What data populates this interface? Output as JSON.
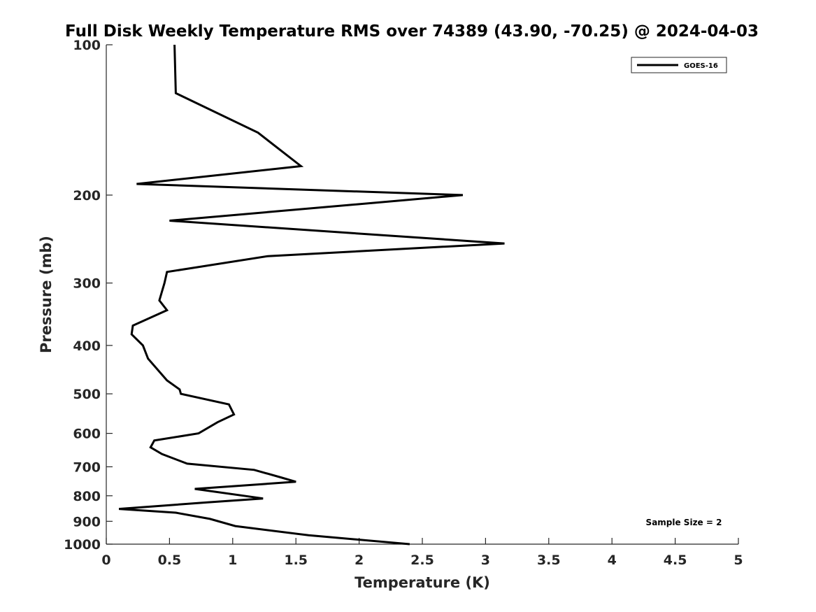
{
  "chart_data": {
    "type": "line",
    "title": "Full Disk Weekly Temperature RMS over 74389 (43.90, -70.25) @ 2024-04-03",
    "xlabel": "Temperature (K)",
    "ylabel": "Pressure (mb)",
    "xlim": [
      0,
      5
    ],
    "ylim": [
      100,
      1000
    ],
    "y_scale": "log",
    "y_reversed": true,
    "x_ticks": [
      "0",
      "0.5",
      "1",
      "1.5",
      "2",
      "2.5",
      "3",
      "3.5",
      "4",
      "4.5",
      "5"
    ],
    "x_tick_values": [
      0,
      0.5,
      1,
      1.5,
      2,
      2.5,
      3,
      3.5,
      4,
      4.5,
      5
    ],
    "y_ticks": [
      "100",
      "200",
      "300",
      "400",
      "500",
      "600",
      "700",
      "800",
      "900",
      "1000"
    ],
    "y_tick_values": [
      100,
      200,
      300,
      400,
      500,
      600,
      700,
      800,
      900,
      1000
    ],
    "grid": false,
    "legend_position": "top-right",
    "annotation": "Sample Size = 2",
    "series": [
      {
        "name": "GOES-16",
        "color": "#000000",
        "points": [
          {
            "x": 0.54,
            "y": 100
          },
          {
            "x": 0.55,
            "y": 125
          },
          {
            "x": 1.2,
            "y": 150
          },
          {
            "x": 1.54,
            "y": 175
          },
          {
            "x": 0.24,
            "y": 190
          },
          {
            "x": 2.82,
            "y": 200
          },
          {
            "x": 0.5,
            "y": 225
          },
          {
            "x": 3.15,
            "y": 250
          },
          {
            "x": 1.28,
            "y": 265
          },
          {
            "x": 0.48,
            "y": 285
          },
          {
            "x": 0.46,
            "y": 300
          },
          {
            "x": 0.42,
            "y": 325
          },
          {
            "x": 0.48,
            "y": 340
          },
          {
            "x": 0.21,
            "y": 365
          },
          {
            "x": 0.2,
            "y": 380
          },
          {
            "x": 0.29,
            "y": 400
          },
          {
            "x": 0.33,
            "y": 425
          },
          {
            "x": 0.48,
            "y": 470
          },
          {
            "x": 0.58,
            "y": 490
          },
          {
            "x": 0.59,
            "y": 500
          },
          {
            "x": 0.97,
            "y": 525
          },
          {
            "x": 1.01,
            "y": 550
          },
          {
            "x": 0.88,
            "y": 570
          },
          {
            "x": 0.73,
            "y": 600
          },
          {
            "x": 0.38,
            "y": 620
          },
          {
            "x": 0.35,
            "y": 640
          },
          {
            "x": 0.44,
            "y": 660
          },
          {
            "x": 0.64,
            "y": 690
          },
          {
            "x": 1.17,
            "y": 710
          },
          {
            "x": 1.38,
            "y": 735
          },
          {
            "x": 1.5,
            "y": 750
          },
          {
            "x": 0.7,
            "y": 775
          },
          {
            "x": 1.24,
            "y": 810
          },
          {
            "x": 0.8,
            "y": 825
          },
          {
            "x": 0.1,
            "y": 850
          },
          {
            "x": 0.55,
            "y": 865
          },
          {
            "x": 0.82,
            "y": 890
          },
          {
            "x": 1.02,
            "y": 920
          },
          {
            "x": 1.6,
            "y": 960
          },
          {
            "x": 2.4,
            "y": 1000
          }
        ]
      }
    ]
  }
}
